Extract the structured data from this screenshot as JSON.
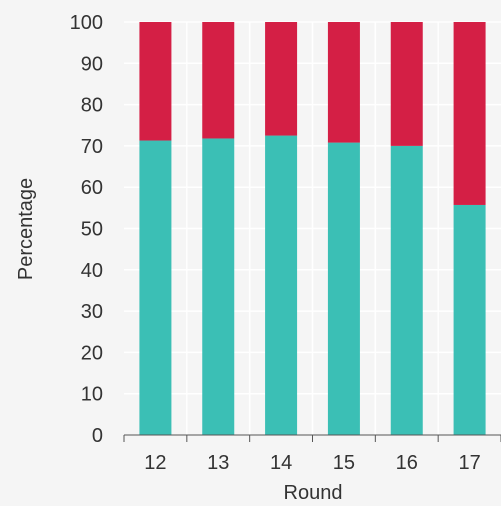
{
  "chart_data": {
    "type": "bar",
    "stacked": true,
    "percent": true,
    "categories": [
      "12",
      "13",
      "14",
      "15",
      "16",
      "17"
    ],
    "series": [
      {
        "values": [
          71.3,
          71.8,
          72.5,
          70.8,
          70.0,
          55.7
        ],
        "color": "#3bbfb5"
      },
      {
        "values": [
          28.7,
          28.2,
          27.5,
          29.2,
          30.0,
          44.3
        ],
        "color": "#d41f45"
      }
    ],
    "xlabel": "Round",
    "ylabel": "Percentage",
    "ylim": [
      0,
      100
    ],
    "yticks": [
      "0",
      "10",
      "20",
      "30",
      "40",
      "50",
      "60",
      "70",
      "80",
      "90",
      "100"
    ],
    "grid": true,
    "legend": "none"
  }
}
